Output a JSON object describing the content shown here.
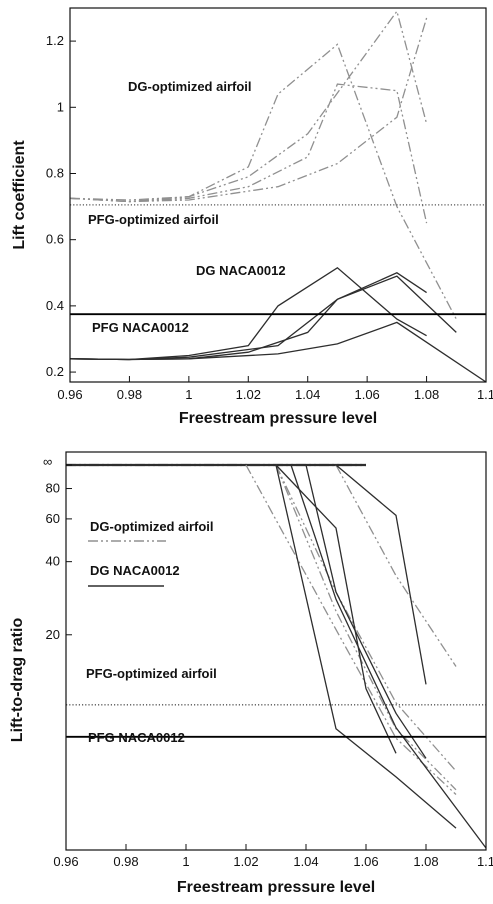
{
  "chart_data": [
    {
      "type": "line",
      "xlabel": "Freestream pressure level",
      "ylabel": "Lift coefficient",
      "xlim": [
        0.96,
        1.1
      ],
      "ylim": [
        0.17,
        1.3
      ],
      "xticks": [
        "0.96",
        "0.98",
        "1",
        "1.02",
        "1.04",
        "1.06",
        "1.08",
        "1.1"
      ],
      "yticks": [
        "0.2",
        "0.4",
        "0.6",
        "0.8",
        "1",
        "1.2"
      ],
      "annotations": [
        "DG-optimized airfoil",
        "PFG-optimized airfoil",
        "DG NACA0012",
        "PFG NACA0012"
      ],
      "series": [
        {
          "group": "dg_opt",
          "x": [
            0.96,
            0.98,
            1.0,
            1.02,
            1.03,
            1.05,
            1.07,
            1.09
          ],
          "y": [
            0.725,
            0.72,
            0.73,
            0.82,
            1.04,
            1.19,
            0.7,
            0.36
          ]
        },
        {
          "group": "dg_opt",
          "x": [
            0.96,
            0.98,
            1.0,
            1.02,
            1.04,
            1.05,
            1.07,
            1.08
          ],
          "y": [
            0.725,
            0.715,
            0.725,
            0.76,
            0.85,
            1.07,
            1.05,
            0.65
          ]
        },
        {
          "group": "dg_opt",
          "x": [
            0.96,
            0.98,
            1.0,
            1.02,
            1.04,
            1.07,
            1.08
          ],
          "y": [
            0.725,
            0.715,
            0.73,
            0.79,
            0.92,
            1.29,
            0.95
          ]
        },
        {
          "group": "dg_opt",
          "x": [
            0.96,
            0.98,
            1.0,
            1.03,
            1.05,
            1.07,
            1.08
          ],
          "y": [
            0.725,
            0.715,
            0.72,
            0.76,
            0.83,
            0.97,
            1.27
          ]
        },
        {
          "group": "pfg_opt",
          "x": [
            0.96,
            1.1
          ],
          "y": [
            0.705,
            0.705
          ]
        },
        {
          "group": "dg_naca",
          "x": [
            0.96,
            0.98,
            1.0,
            1.02,
            1.03,
            1.05,
            1.07,
            1.08
          ],
          "y": [
            0.24,
            0.238,
            0.25,
            0.28,
            0.4,
            0.515,
            0.36,
            0.31
          ]
        },
        {
          "group": "dg_naca",
          "x": [
            0.96,
            0.98,
            1.0,
            1.03,
            1.05,
            1.07,
            1.09
          ],
          "y": [
            0.24,
            0.238,
            0.245,
            0.28,
            0.42,
            0.49,
            0.32
          ]
        },
        {
          "group": "dg_naca",
          "x": [
            0.96,
            0.98,
            1.0,
            1.02,
            1.04,
            1.05,
            1.07,
            1.08
          ],
          "y": [
            0.24,
            0.238,
            0.24,
            0.26,
            0.32,
            0.42,
            0.5,
            0.44
          ]
        },
        {
          "group": "dg_naca",
          "x": [
            0.96,
            0.98,
            1.0,
            1.03,
            1.05,
            1.07,
            1.1
          ],
          "y": [
            0.24,
            0.238,
            0.24,
            0.255,
            0.285,
            0.35,
            0.17
          ]
        },
        {
          "group": "pfg_naca",
          "x": [
            0.96,
            1.1
          ],
          "y": [
            0.375,
            0.375
          ]
        }
      ]
    },
    {
      "type": "line",
      "xlabel": "Freestream pressure level",
      "ylabel": "Lift-to-drag ratio",
      "xlim": [
        0.96,
        1.1
      ],
      "ylim": [
        2.6,
        100
      ],
      "yscale": "log",
      "xticks": [
        "0.96",
        "0.98",
        "1",
        "1.02",
        "1.04",
        "1.06",
        "1.08",
        "1.1"
      ],
      "yticks": [
        "20",
        "40",
        "60",
        "80"
      ],
      "ytop_label": "∞",
      "annotations": [
        "DG-optimized airfoil",
        "DG NACA0012",
        "PFG-optimized airfoil",
        "PFG NACA0012"
      ],
      "legend": [
        {
          "label": "DG-optimized airfoil",
          "group": "dg_opt"
        },
        {
          "label": "DG NACA0012",
          "group": "dg_naca"
        }
      ],
      "infinity_segments": [
        {
          "group": "dg_opt",
          "x": [
            0.96,
            1.06
          ]
        },
        {
          "group": "dg_naca",
          "x": [
            0.96,
            1.06
          ]
        }
      ],
      "series": [
        {
          "group": "dg_opt",
          "x": [
            1.02,
            1.05,
            1.07,
            1.09
          ],
          "y": [
            100,
            21,
            7.5,
            4.4
          ]
        },
        {
          "group": "dg_opt",
          "x": [
            1.03,
            1.05,
            1.07,
            1.09
          ],
          "y": [
            100,
            30,
            10.5,
            5.5
          ]
        },
        {
          "group": "dg_opt",
          "x": [
            1.03,
            1.05,
            1.07,
            1.09
          ],
          "y": [
            100,
            25,
            8.2,
            4.6
          ]
        },
        {
          "group": "dg_opt",
          "x": [
            1.05,
            1.07,
            1.09
          ],
          "y": [
            100,
            35,
            14.8
          ]
        },
        {
          "group": "pfg_opt",
          "x": [
            0.96,
            1.1
          ],
          "y": [
            10.3,
            10.3
          ]
        },
        {
          "group": "dg_naca",
          "x": [
            1.03,
            1.05,
            1.07,
            1.09
          ],
          "y": [
            100,
            8.2,
            5.2,
            3.2
          ]
        },
        {
          "group": "dg_naca",
          "x": [
            1.03,
            1.05,
            1.06,
            1.07
          ],
          "y": [
            100,
            55,
            12,
            6.5
          ]
        },
        {
          "group": "dg_naca",
          "x": [
            1.035,
            1.05,
            1.07,
            1.1
          ],
          "y": [
            100,
            28,
            8.3,
            2.65
          ]
        },
        {
          "group": "dg_naca",
          "x": [
            1.04,
            1.05,
            1.07,
            1.08
          ],
          "y": [
            100,
            30,
            9.5,
            6.2
          ]
        },
        {
          "group": "dg_naca",
          "x": [
            1.05,
            1.07,
            1.08
          ],
          "y": [
            100,
            62,
            12.5
          ]
        },
        {
          "group": "pfg_naca",
          "x": [
            0.96,
            1.1
          ],
          "y": [
            7.6,
            7.6
          ]
        }
      ]
    }
  ],
  "styles": {
    "dg_opt": {
      "color": "#909090",
      "dash": "10 3 2 3 2 3"
    },
    "pfg_opt": {
      "color": "#555555",
      "dash": "1.2 2"
    },
    "dg_naca": {
      "color": "#2e2e2e",
      "dash": ""
    },
    "pfg_naca": {
      "color": "#000000",
      "dash": ""
    }
  }
}
